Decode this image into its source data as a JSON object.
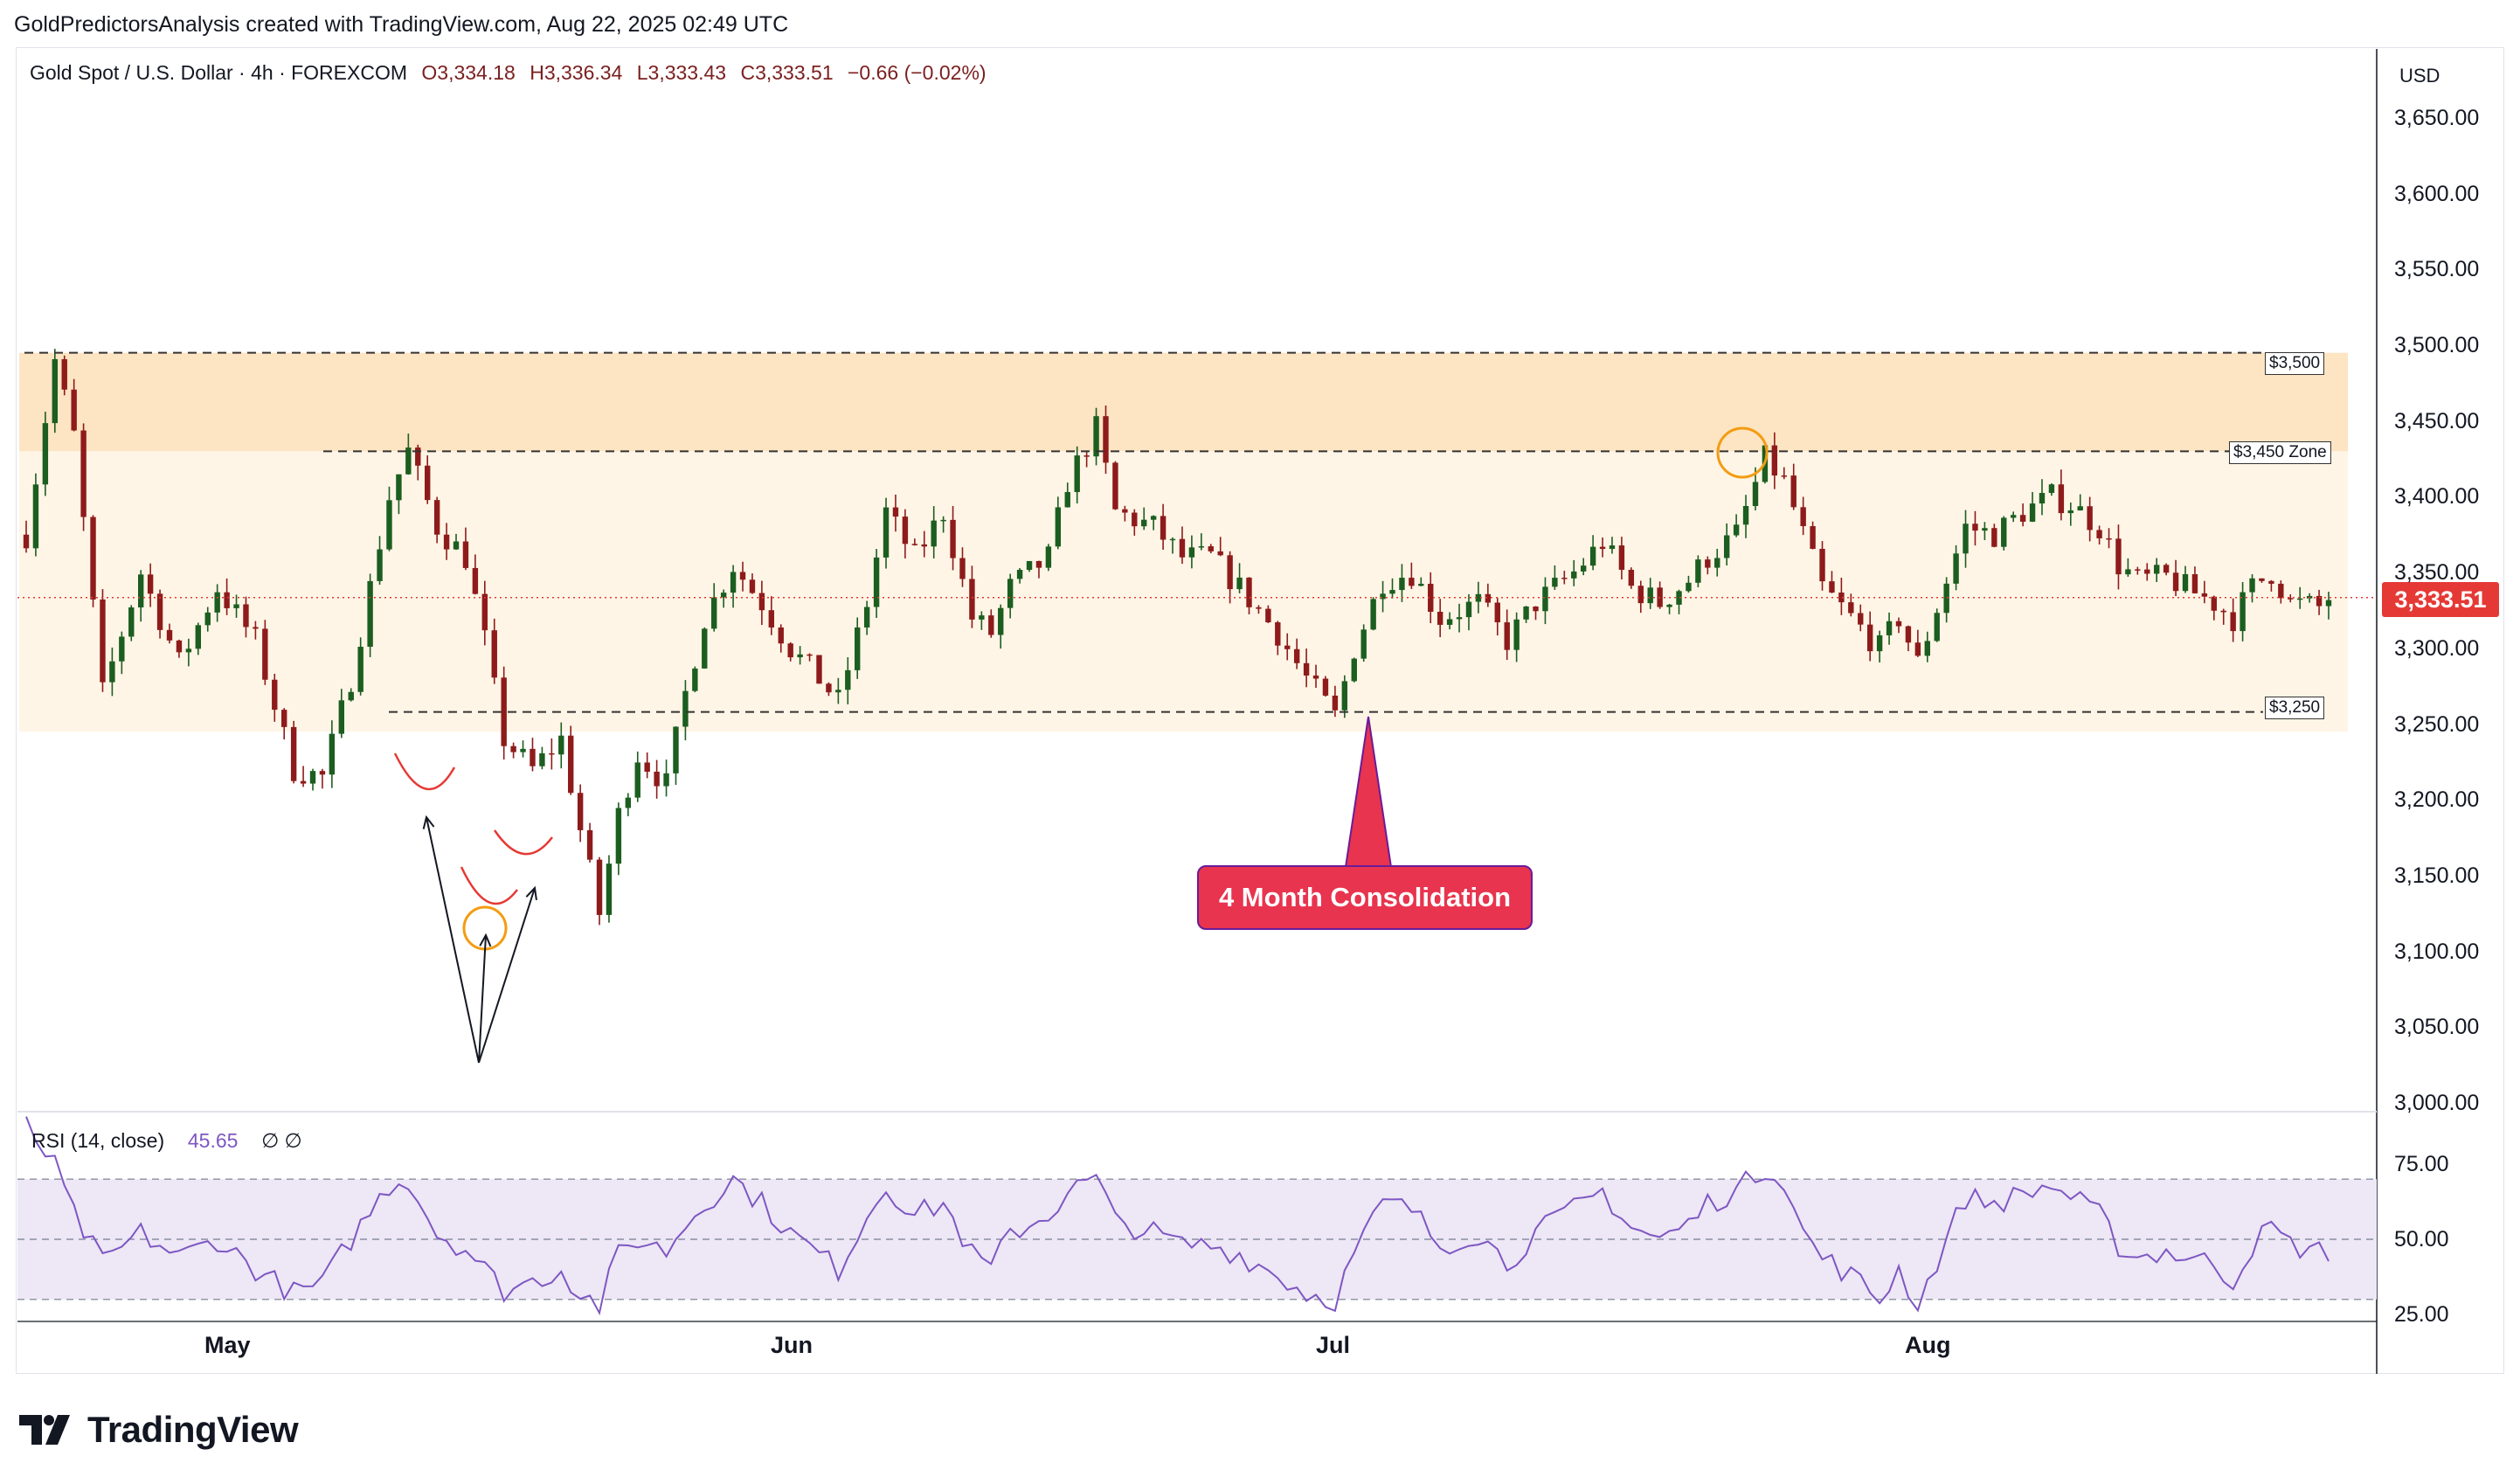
{
  "header": {
    "credit": "GoldPredictorsAnalysis created with TradingView.com, Aug 22, 2025 02:49 UTC"
  },
  "legend": {
    "symbol": "Gold Spot / U.S. Dollar · 4h · FOREXCOM",
    "open": "O3,334.18",
    "high": "H3,336.34",
    "low": "L3,333.43",
    "close": "C3,333.51",
    "change": "−0.66 (−0.02%)"
  },
  "currency": "USD",
  "last_price_label": "3,333.51",
  "rsi": {
    "label": "RSI (14, close)",
    "value": "45.65",
    "extra": "∅  ∅",
    "ticks": [
      "75.00",
      "50.00",
      "25.00"
    ]
  },
  "annotations": {
    "callout": "4 Month Consolidation",
    "level_3500": "$3,500",
    "level_3450": "$3,450 Zone",
    "level_3250": "$3,250"
  },
  "branding": "TradingView",
  "colors": {
    "up": "#26a69a",
    "down": "#ef5350",
    "candle_up": "#1b5e20",
    "candle_down": "#8e1b1b",
    "zone_top": "#fde4c2",
    "zone_main": "#fff5e6",
    "rsi_line": "#7e57c2",
    "rsi_band": "#ede7f6",
    "callout": "#e8344e",
    "last_price": "#e53935"
  },
  "chart_data": {
    "type": "candlestick",
    "title": "Gold Spot / U.S. Dollar · 4h · FOREXCOM",
    "y_ticks": [
      "3,650.00",
      "3,600.00",
      "3,550.00",
      "3,500.00",
      "3,450.00",
      "3,400.00",
      "3,350.00",
      "3,300.00",
      "3,250.00",
      "3,200.00",
      "3,150.00",
      "3,100.00",
      "3,050.00",
      "3,000.00"
    ],
    "x_ticks": [
      "May",
      "Jun",
      "Jul",
      "Aug"
    ],
    "ylim": [
      3000,
      3650
    ],
    "levels": [
      {
        "label": "$3,500",
        "value": 3495
      },
      {
        "label": "$3,450 Zone",
        "value": 3430
      },
      {
        "label": "$3,250",
        "value": 3258
      }
    ],
    "last_price": 3333.51,
    "path": [
      [
        0,
        3375
      ],
      [
        3,
        3490
      ],
      [
        5,
        3440
      ],
      [
        8,
        3270
      ],
      [
        12,
        3350
      ],
      [
        16,
        3290
      ],
      [
        20,
        3340
      ],
      [
        24,
        3305
      ],
      [
        28,
        3220
      ],
      [
        31,
        3215
      ],
      [
        34,
        3280
      ],
      [
        38,
        3400
      ],
      [
        40,
        3430
      ],
      [
        43,
        3380
      ],
      [
        46,
        3360
      ],
      [
        48,
        3305
      ],
      [
        50,
        3240
      ],
      [
        53,
        3220
      ],
      [
        56,
        3240
      ],
      [
        58,
        3180
      ],
      [
        60,
        3125
      ],
      [
        62,
        3190
      ],
      [
        64,
        3230
      ],
      [
        67,
        3210
      ],
      [
        69,
        3270
      ],
      [
        71,
        3320
      ],
      [
        74,
        3355
      ],
      [
        77,
        3330
      ],
      [
        80,
        3300
      ],
      [
        83,
        3280
      ],
      [
        85,
        3265
      ],
      [
        88,
        3330
      ],
      [
        90,
        3390
      ],
      [
        93,
        3360
      ],
      [
        96,
        3390
      ],
      [
        99,
        3320
      ],
      [
        101,
        3310
      ],
      [
        103,
        3340
      ],
      [
        107,
        3360
      ],
      [
        109,
        3410
      ],
      [
        112,
        3445
      ],
      [
        114,
        3390
      ],
      [
        118,
        3380
      ],
      [
        121,
        3360
      ],
      [
        124,
        3360
      ],
      [
        127,
        3340
      ],
      [
        131,
        3310
      ],
      [
        134,
        3280
      ],
      [
        137,
        3255
      ],
      [
        139,
        3300
      ],
      [
        142,
        3345
      ],
      [
        145,
        3350
      ],
      [
        148,
        3320
      ],
      [
        152,
        3330
      ],
      [
        155,
        3305
      ],
      [
        158,
        3330
      ],
      [
        162,
        3350
      ],
      [
        165,
        3370
      ],
      [
        168,
        3340
      ],
      [
        171,
        3330
      ],
      [
        174,
        3345
      ],
      [
        176,
        3360
      ],
      [
        179,
        3375
      ],
      [
        182,
        3425
      ],
      [
        184,
        3410
      ],
      [
        186,
        3375
      ],
      [
        188,
        3340
      ],
      [
        191,
        3320
      ],
      [
        194,
        3300
      ],
      [
        196,
        3320
      ],
      [
        198,
        3290
      ],
      [
        201,
        3345
      ],
      [
        203,
        3380
      ],
      [
        206,
        3375
      ],
      [
        209,
        3390
      ],
      [
        212,
        3400
      ],
      [
        214,
        3395
      ],
      [
        217,
        3380
      ],
      [
        219,
        3355
      ],
      [
        221,
        3345
      ],
      [
        224,
        3347
      ],
      [
        226,
        3340
      ],
      [
        229,
        3330
      ],
      [
        231,
        3320
      ],
      [
        233,
        3340
      ],
      [
        235,
        3350
      ],
      [
        237,
        3330
      ],
      [
        240,
        3327
      ],
      [
        241,
        3333.51
      ]
    ],
    "rsi_series": [
      [
        0,
        88
      ],
      [
        3,
        74
      ],
      [
        5,
        58
      ],
      [
        8,
        42
      ],
      [
        12,
        52
      ],
      [
        16,
        44
      ],
      [
        20,
        50
      ],
      [
        24,
        40
      ],
      [
        28,
        32
      ],
      [
        31,
        35
      ],
      [
        34,
        50
      ],
      [
        38,
        68
      ],
      [
        40,
        70
      ],
      [
        43,
        52
      ],
      [
        46,
        47
      ],
      [
        48,
        40
      ],
      [
        50,
        33
      ],
      [
        53,
        36
      ],
      [
        56,
        40
      ],
      [
        58,
        32
      ],
      [
        60,
        28
      ],
      [
        62,
        45
      ],
      [
        64,
        50
      ],
      [
        67,
        46
      ],
      [
        69,
        55
      ],
      [
        71,
        62
      ],
      [
        74,
        70
      ],
      [
        77,
        62
      ],
      [
        80,
        52
      ],
      [
        83,
        45
      ],
      [
        85,
        40
      ],
      [
        88,
        58
      ],
      [
        90,
        68
      ],
      [
        93,
        58
      ],
      [
        96,
        62
      ],
      [
        99,
        45
      ],
      [
        101,
        40
      ],
      [
        103,
        52
      ],
      [
        107,
        58
      ],
      [
        109,
        66
      ],
      [
        112,
        70
      ],
      [
        114,
        56
      ],
      [
        118,
        52
      ],
      [
        121,
        48
      ],
      [
        124,
        48
      ],
      [
        127,
        45
      ],
      [
        131,
        38
      ],
      [
        134,
        32
      ],
      [
        137,
        30
      ],
      [
        139,
        45
      ],
      [
        142,
        62
      ],
      [
        145,
        60
      ],
      [
        148,
        48
      ],
      [
        152,
        52
      ],
      [
        155,
        42
      ],
      [
        158,
        52
      ],
      [
        162,
        60
      ],
      [
        165,
        66
      ],
      [
        168,
        54
      ],
      [
        171,
        50
      ],
      [
        174,
        55
      ],
      [
        176,
        62
      ],
      [
        179,
        66
      ],
      [
        182,
        74
      ],
      [
        184,
        70
      ],
      [
        186,
        52
      ],
      [
        188,
        44
      ],
      [
        191,
        38
      ],
      [
        194,
        30
      ],
      [
        196,
        40
      ],
      [
        198,
        28
      ],
      [
        201,
        50
      ],
      [
        203,
        64
      ],
      [
        206,
        62
      ],
      [
        209,
        65
      ],
      [
        212,
        68
      ],
      [
        214,
        64
      ],
      [
        217,
        58
      ],
      [
        219,
        48
      ],
      [
        221,
        44
      ],
      [
        224,
        46
      ],
      [
        226,
        44
      ],
      [
        229,
        42
      ],
      [
        231,
        36
      ],
      [
        233,
        48
      ],
      [
        235,
        54
      ],
      [
        237,
        48
      ],
      [
        240,
        46
      ],
      [
        241,
        45.65
      ]
    ]
  }
}
